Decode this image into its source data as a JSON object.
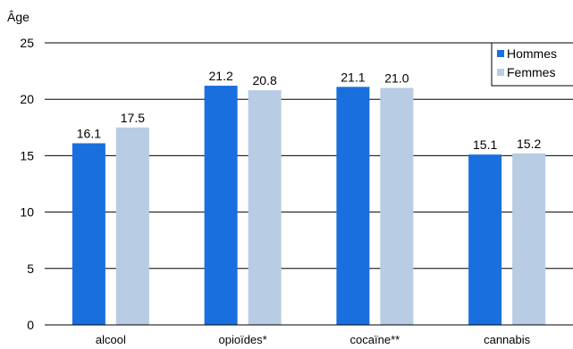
{
  "chart_data": {
    "type": "bar",
    "ylabel": "Âge",
    "ylim": [
      0,
      25
    ],
    "yticks": [
      0,
      5,
      10,
      15,
      20,
      25
    ],
    "grid": true,
    "legend_position": "top-right",
    "categories": [
      "alcool",
      "opioïdes*",
      "cocaïne**",
      "cannabis"
    ],
    "series": [
      {
        "name": "Hommes",
        "color": "#1a6fdf",
        "values": [
          16.1,
          21.2,
          21.1,
          15.1
        ],
        "labels": [
          "16.1",
          "21.2",
          "21.1",
          "15.1"
        ]
      },
      {
        "name": "Femmes",
        "color": "#b8cce4",
        "values": [
          17.5,
          20.8,
          21.0,
          15.2
        ],
        "labels": [
          "17.5",
          "20.8",
          "21.0",
          "15.2"
        ]
      }
    ]
  }
}
